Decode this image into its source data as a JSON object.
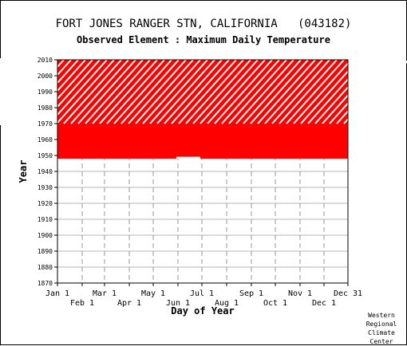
{
  "chart_data": {
    "type": "heatmap",
    "title": "FORT JONES RANGER STN, CALIFORNIA   (043182)",
    "subtitle": "Observed Element : Maximum Daily Temperature",
    "xlabel": "Day of Year",
    "ylabel": "Year",
    "x_ticks_upper": [
      "Jan 1",
      "Mar 1",
      "May 1",
      "Jul 1",
      "Sep 1",
      "Nov 1",
      "Dec 31"
    ],
    "x_ticks_lower": [
      "Feb 1",
      "Apr 1",
      "Jun 1",
      "Aug 1",
      "Oct 1",
      "Dec 1"
    ],
    "y_ticks": [
      1870,
      1880,
      1890,
      1900,
      1910,
      1920,
      1930,
      1940,
      1950,
      1960,
      1970,
      1980,
      1990,
      2000,
      2010
    ],
    "xlim": [
      1,
      365
    ],
    "ylim": [
      1870,
      2010
    ],
    "grid": true,
    "mark_color": "#ff0000",
    "period_of_record": [
      1948,
      2010
    ],
    "coverage": [
      {
        "years": [
          1948,
          1970
        ],
        "status": "complete"
      },
      {
        "years": [
          1970,
          2010
        ],
        "status": "partial"
      }
    ]
  },
  "credit": [
    "Western",
    "Regional",
    "Climate",
    "Center"
  ]
}
